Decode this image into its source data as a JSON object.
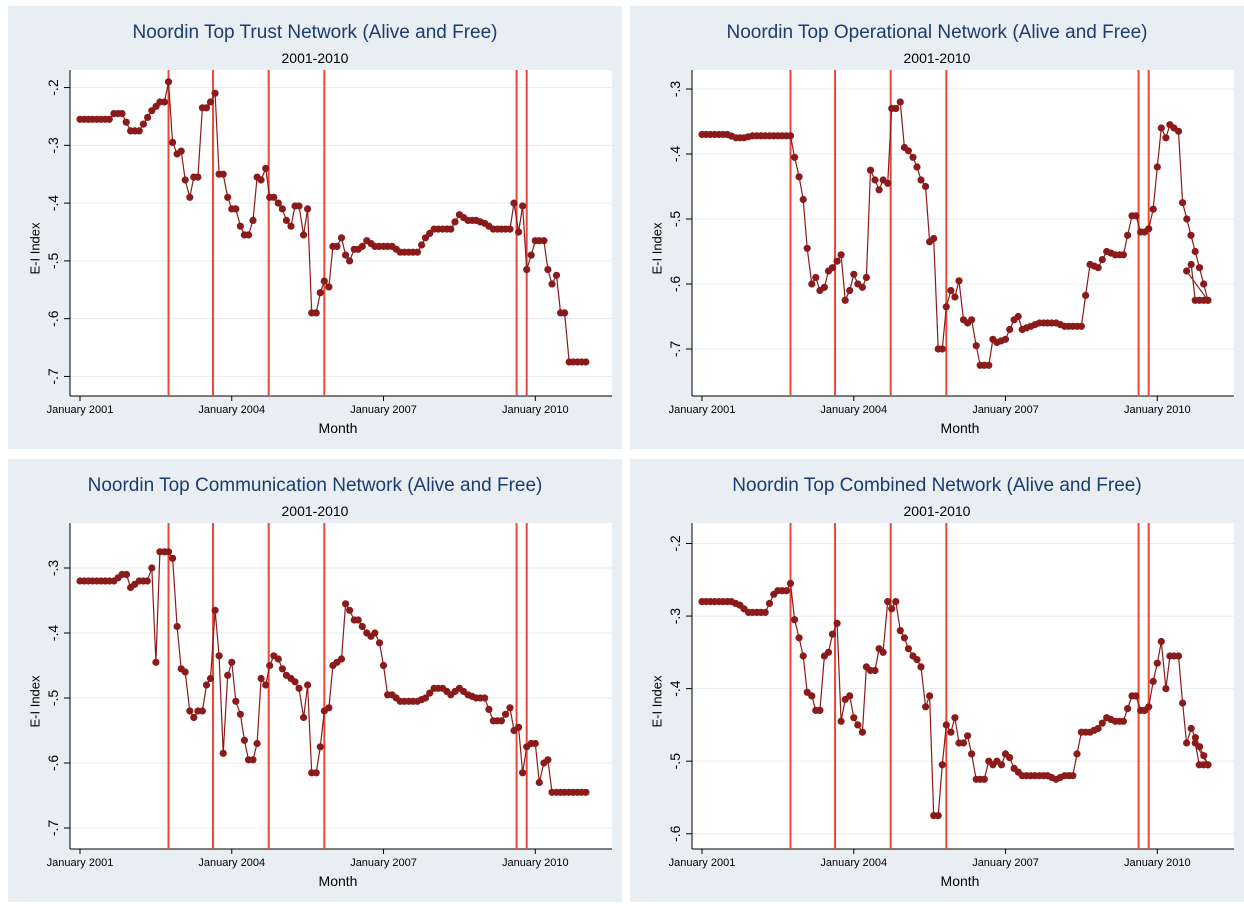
{
  "chart_data": [
    {
      "type": "line",
      "title": "Noordin Top Trust Network (Alive and Free)",
      "subtitle": "2001-2010",
      "xlabel": "Month",
      "ylabel": "E-I Index",
      "xlim": [
        2001.0,
        2011.2
      ],
      "ylim": [
        -0.72,
        -0.18
      ],
      "yticks": [
        -0.2,
        -0.3,
        -0.4,
        -0.5,
        -0.6,
        -0.7
      ],
      "ytick_labels": [
        "-.2",
        "-.3",
        "-.4",
        "-.5",
        "-.6",
        "-.7"
      ],
      "xticks": [
        2001.0,
        2004.0,
        2007.0,
        2010.0
      ],
      "xtick_labels": [
        "January 2001",
        "January 2004",
        "January 2007",
        "January 2010"
      ],
      "event_lines": [
        2002.75,
        2003.63,
        2004.73,
        2005.83,
        2009.63,
        2009.83
      ],
      "grid": true,
      "x": [
        2001.0,
        2001.58,
        2001.67,
        2001.83,
        2002.0,
        2002.17,
        2002.42,
        2002.58,
        2002.67,
        2002.75,
        2002.83,
        2002.92,
        2003.0,
        2003.08,
        2003.17,
        2003.25,
        2003.33,
        2003.42,
        2003.5,
        2003.58,
        2003.67,
        2003.75,
        2003.83,
        2003.92,
        2004.0,
        2004.08,
        2004.17,
        2004.25,
        2004.33,
        2004.42,
        2004.5,
        2004.58,
        2004.67,
        2004.75,
        2004.83,
        2004.92,
        2005.0,
        2005.08,
        2005.17,
        2005.25,
        2005.33,
        2005.42,
        2005.5,
        2005.58,
        2005.67,
        2005.75,
        2005.83,
        2005.92,
        2006.0,
        2006.08,
        2006.17,
        2006.25,
        2006.33,
        2006.42,
        2006.5,
        2006.58,
        2006.67,
        2006.83,
        2007.0,
        2007.17,
        2007.33,
        2007.5,
        2007.67,
        2007.83,
        2008.0,
        2008.17,
        2008.33,
        2008.5,
        2008.67,
        2008.83,
        2009.0,
        2009.17,
        2009.33,
        2009.5,
        2009.58,
        2009.67,
        2009.75,
        2009.83,
        2009.92,
        2010.0,
        2010.08,
        2010.17,
        2010.25,
        2010.33,
        2010.42,
        2010.5,
        2010.58,
        2010.67,
        2010.75,
        2011.0
      ],
      "y": [
        -0.255,
        -0.255,
        -0.245,
        -0.245,
        -0.275,
        -0.275,
        -0.24,
        -0.225,
        -0.225,
        -0.19,
        -0.295,
        -0.315,
        -0.31,
        -0.36,
        -0.39,
        -0.355,
        -0.355,
        -0.235,
        -0.235,
        -0.225,
        -0.21,
        -0.35,
        -0.35,
        -0.39,
        -0.41,
        -0.41,
        -0.44,
        -0.455,
        -0.455,
        -0.43,
        -0.355,
        -0.36,
        -0.34,
        -0.39,
        -0.39,
        -0.4,
        -0.41,
        -0.43,
        -0.44,
        -0.405,
        -0.405,
        -0.455,
        -0.41,
        -0.59,
        -0.59,
        -0.555,
        -0.535,
        -0.545,
        -0.475,
        -0.475,
        -0.46,
        -0.49,
        -0.5,
        -0.48,
        -0.48,
        -0.475,
        -0.465,
        -0.475,
        -0.475,
        -0.475,
        -0.485,
        -0.485,
        -0.485,
        -0.46,
        -0.445,
        -0.445,
        -0.445,
        -0.42,
        -0.43,
        -0.43,
        -0.435,
        -0.445,
        -0.445,
        -0.445,
        -0.4,
        -0.45,
        -0.405,
        -0.515,
        -0.49,
        -0.465,
        -0.465,
        -0.465,
        -0.515,
        -0.54,
        -0.525,
        -0.59,
        -0.59,
        -0.675,
        -0.675,
        -0.675
      ]
    },
    {
      "type": "line",
      "title": "Noordin Top Operational Network (Alive and Free)",
      "subtitle": "2001-2010",
      "xlabel": "Month",
      "ylabel": "E-I Index",
      "xlim": [
        2001.0,
        2011.2
      ],
      "ylim": [
        -0.76,
        -0.28
      ],
      "yticks": [
        -0.3,
        -0.4,
        -0.5,
        -0.6,
        -0.7
      ],
      "ytick_labels": [
        "-.3",
        "-.4",
        "-.5",
        "-.6",
        "-.7"
      ],
      "xticks": [
        2001.0,
        2004.0,
        2007.0,
        2010.0
      ],
      "xtick_labels": [
        "January 2001",
        "January 2004",
        "January 2007",
        "January 2010"
      ],
      "event_lines": [
        2002.75,
        2003.63,
        2004.73,
        2005.83,
        2009.63,
        2009.83
      ],
      "grid": true,
      "x": [
        2001.0,
        2001.5,
        2001.67,
        2001.83,
        2002.0,
        2002.5,
        2002.75,
        2002.83,
        2002.92,
        2003.0,
        2003.08,
        2003.17,
        2003.25,
        2003.33,
        2003.42,
        2003.5,
        2003.58,
        2003.67,
        2003.75,
        2003.83,
        2003.92,
        2004.0,
        2004.08,
        2004.17,
        2004.25,
        2004.33,
        2004.42,
        2004.5,
        2004.58,
        2004.67,
        2004.75,
        2004.83,
        2004.92,
        2005.0,
        2005.08,
        2005.17,
        2005.25,
        2005.33,
        2005.42,
        2005.5,
        2005.58,
        2005.67,
        2005.75,
        2005.83,
        2005.92,
        2006.0,
        2006.08,
        2006.17,
        2006.25,
        2006.33,
        2006.42,
        2006.5,
        2006.58,
        2006.67,
        2006.75,
        2006.83,
        2007.0,
        2007.17,
        2007.25,
        2007.33,
        2007.5,
        2007.67,
        2007.83,
        2008.0,
        2008.17,
        2008.25,
        2008.5,
        2008.67,
        2008.83,
        2009.0,
        2009.17,
        2009.33,
        2009.5,
        2009.58,
        2009.67,
        2009.75,
        2009.83,
        2009.92,
        2010.0,
        2010.08,
        2010.17,
        2010.25,
        2010.33,
        2010.42,
        2010.5,
        2011.0
      ],
      "y": [
        -0.37,
        -0.37,
        -0.375,
        -0.375,
        -0.372,
        -0.372,
        -0.372,
        -0.405,
        -0.435,
        -0.47,
        -0.545,
        -0.6,
        -0.59,
        -0.61,
        -0.605,
        -0.58,
        -0.575,
        -0.565,
        -0.555,
        -0.625,
        -0.61,
        -0.585,
        -0.6,
        -0.605,
        -0.59,
        -0.425,
        -0.44,
        -0.455,
        -0.44,
        -0.445,
        -0.33,
        -0.33,
        -0.32,
        -0.39,
        -0.395,
        -0.405,
        -0.42,
        -0.44,
        -0.45,
        -0.535,
        -0.53,
        -0.7,
        -0.7,
        -0.635,
        -0.61,
        -0.62,
        -0.595,
        -0.655,
        -0.66,
        -0.655,
        -0.695,
        -0.725,
        -0.725,
        -0.725,
        -0.685,
        -0.69,
        -0.685,
        -0.655,
        -0.65,
        -0.67,
        -0.665,
        -0.66,
        -0.66,
        -0.66,
        -0.665,
        -0.665,
        -0.665,
        -0.57,
        -0.575,
        -0.55,
        -0.555,
        -0.555,
        -0.495,
        -0.495,
        -0.52,
        -0.52,
        -0.515,
        -0.485,
        -0.42,
        -0.36,
        -0.375,
        -0.355,
        -0.36,
        -0.365,
        -0.475,
        -0.625
      ],
      "x_tail": [
        2010.58,
        2010.67,
        2010.75,
        2011.0
      ],
      "y_tail": [
        -0.58,
        -0.57,
        -0.625,
        -0.625
      ]
    },
    {
      "type": "line",
      "title": "Noordin Top Communication Network (Alive and Free)",
      "subtitle": "2001-2010",
      "xlabel": "Month",
      "ylabel": "E-I Index",
      "xlim": [
        2001.0,
        2011.2
      ],
      "ylim": [
        -0.72,
        -0.24
      ],
      "yticks": [
        -0.3,
        -0.4,
        -0.5,
        -0.6,
        -0.7
      ],
      "ytick_labels": [
        "-.3",
        "-.4",
        "-.5",
        "-.6",
        "-.7"
      ],
      "xticks": [
        2001.0,
        2004.0,
        2007.0,
        2010.0
      ],
      "xtick_labels": [
        "January 2001",
        "January 2004",
        "January 2007",
        "January 2010"
      ],
      "event_lines": [
        2002.75,
        2003.63,
        2004.73,
        2005.83,
        2009.63,
        2009.83
      ],
      "grid": true,
      "x": [
        2001.0,
        2001.67,
        2001.83,
        2001.92,
        2002.0,
        2002.17,
        2002.33,
        2002.42,
        2002.5,
        2002.58,
        2002.67,
        2002.75,
        2002.83,
        2002.92,
        2003.0,
        2003.08,
        2003.17,
        2003.25,
        2003.33,
        2003.42,
        2003.5,
        2003.58,
        2003.67,
        2003.75,
        2003.83,
        2003.92,
        2004.0,
        2004.08,
        2004.17,
        2004.25,
        2004.33,
        2004.42,
        2004.5,
        2004.58,
        2004.67,
        2004.75,
        2004.83,
        2004.92,
        2005.0,
        2005.08,
        2005.17,
        2005.25,
        2005.33,
        2005.42,
        2005.5,
        2005.58,
        2005.67,
        2005.75,
        2005.83,
        2005.92,
        2006.0,
        2006.08,
        2006.17,
        2006.25,
        2006.33,
        2006.42,
        2006.5,
        2006.58,
        2006.67,
        2006.75,
        2006.83,
        2006.92,
        2007.0,
        2007.08,
        2007.17,
        2007.25,
        2007.33,
        2007.5,
        2007.67,
        2007.83,
        2008.0,
        2008.17,
        2008.33,
        2008.5,
        2008.67,
        2008.83,
        2009.0,
        2009.17,
        2009.33,
        2009.5,
        2009.58,
        2009.67,
        2009.75,
        2009.83,
        2009.92,
        2010.0,
        2010.08,
        2010.17,
        2010.25,
        2010.33,
        2010.42,
        2010.5,
        2010.58,
        2011.0
      ],
      "y": [
        -0.32,
        -0.32,
        -0.31,
        -0.31,
        -0.33,
        -0.32,
        -0.32,
        -0.3,
        -0.445,
        -0.275,
        -0.275,
        -0.275,
        -0.285,
        -0.39,
        -0.455,
        -0.46,
        -0.52,
        -0.53,
        -0.52,
        -0.52,
        -0.48,
        -0.47,
        -0.365,
        -0.435,
        -0.585,
        -0.465,
        -0.445,
        -0.505,
        -0.525,
        -0.565,
        -0.595,
        -0.595,
        -0.57,
        -0.47,
        -0.48,
        -0.45,
        -0.435,
        -0.44,
        -0.455,
        -0.465,
        -0.47,
        -0.475,
        -0.485,
        -0.53,
        -0.48,
        -0.615,
        -0.615,
        -0.575,
        -0.52,
        -0.515,
        -0.45,
        -0.445,
        -0.44,
        -0.355,
        -0.365,
        -0.38,
        -0.38,
        -0.39,
        -0.4,
        -0.405,
        -0.4,
        -0.415,
        -0.45,
        -0.495,
        -0.495,
        -0.5,
        -0.505,
        -0.505,
        -0.505,
        -0.5,
        -0.485,
        -0.485,
        -0.495,
        -0.485,
        -0.495,
        -0.5,
        -0.5,
        -0.535,
        -0.535,
        -0.515,
        -0.55,
        -0.545,
        -0.615,
        -0.575,
        -0.57,
        -0.57,
        -0.63,
        -0.6,
        -0.595,
        -0.645,
        -0.645,
        -0.645,
        -0.645,
        -0.645
      ]
    },
    {
      "type": "line",
      "title": "Noordin Top Combined Network (Alive and Free)",
      "subtitle": "2001-2010",
      "xlabel": "Month",
      "ylabel": "E-I Index",
      "xlim": [
        2001.0,
        2011.2
      ],
      "ylim": [
        -0.61,
        -0.18
      ],
      "yticks": [
        -0.2,
        -0.3,
        -0.4,
        -0.5,
        -0.6
      ],
      "ytick_labels": [
        "-.2",
        "-.3",
        "-.4",
        "-.5",
        "-.6"
      ],
      "xticks": [
        2001.0,
        2004.0,
        2007.0,
        2010.0
      ],
      "xtick_labels": [
        "January 2001",
        "January 2004",
        "January 2007",
        "January 2010"
      ],
      "event_lines": [
        2002.75,
        2003.63,
        2004.73,
        2005.83,
        2009.63,
        2009.83
      ],
      "grid": true,
      "x": [
        2001.0,
        2001.58,
        2001.75,
        2001.83,
        2001.92,
        2002.0,
        2002.25,
        2002.42,
        2002.5,
        2002.67,
        2002.75,
        2002.83,
        2002.92,
        2003.0,
        2003.08,
        2003.17,
        2003.25,
        2003.33,
        2003.42,
        2003.5,
        2003.58,
        2003.67,
        2003.75,
        2003.83,
        2003.92,
        2004.0,
        2004.08,
        2004.17,
        2004.25,
        2004.33,
        2004.42,
        2004.5,
        2004.58,
        2004.67,
        2004.75,
        2004.83,
        2004.92,
        2005.0,
        2005.08,
        2005.17,
        2005.25,
        2005.33,
        2005.42,
        2005.5,
        2005.58,
        2005.67,
        2005.75,
        2005.83,
        2005.92,
        2006.0,
        2006.08,
        2006.17,
        2006.25,
        2006.33,
        2006.42,
        2006.5,
        2006.58,
        2006.67,
        2006.75,
        2006.83,
        2006.92,
        2007.0,
        2007.08,
        2007.17,
        2007.33,
        2007.5,
        2007.67,
        2007.83,
        2008.0,
        2008.17,
        2008.33,
        2008.5,
        2008.67,
        2008.83,
        2009.0,
        2009.17,
        2009.33,
        2009.5,
        2009.58,
        2009.67,
        2009.75,
        2009.83,
        2009.92,
        2010.0,
        2010.08,
        2010.17,
        2010.25,
        2010.33,
        2010.42,
        2010.5,
        2010.58,
        2010.67,
        2011.0
      ],
      "y": [
        -0.28,
        -0.28,
        -0.285,
        -0.29,
        -0.295,
        -0.295,
        -0.295,
        -0.27,
        -0.265,
        -0.265,
        -0.255,
        -0.305,
        -0.33,
        -0.355,
        -0.405,
        -0.41,
        -0.43,
        -0.43,
        -0.355,
        -0.35,
        -0.325,
        -0.31,
        -0.445,
        -0.415,
        -0.41,
        -0.44,
        -0.45,
        -0.46,
        -0.37,
        -0.375,
        -0.375,
        -0.345,
        -0.35,
        -0.28,
        -0.29,
        -0.28,
        -0.32,
        -0.33,
        -0.345,
        -0.355,
        -0.36,
        -0.37,
        -0.425,
        -0.41,
        -0.575,
        -0.575,
        -0.505,
        -0.45,
        -0.46,
        -0.44,
        -0.475,
        -0.475,
        -0.465,
        -0.49,
        -0.525,
        -0.525,
        -0.525,
        -0.5,
        -0.505,
        -0.5,
        -0.505,
        -0.49,
        -0.495,
        -0.51,
        -0.52,
        -0.52,
        -0.52,
        -0.52,
        -0.525,
        -0.52,
        -0.52,
        -0.46,
        -0.46,
        -0.455,
        -0.44,
        -0.445,
        -0.445,
        -0.41,
        -0.41,
        -0.43,
        -0.43,
        -0.425,
        -0.39,
        -0.365,
        -0.335,
        -0.4,
        -0.355,
        -0.355,
        -0.355,
        -0.42,
        -0.475,
        -0.455,
        -0.505
      ],
      "x_tail": [
        2010.75,
        2010.83,
        2011.0
      ],
      "y_tail": [
        -0.475,
        -0.505,
        -0.505
      ]
    }
  ],
  "colors": {
    "panel_bg": "#e8eef1",
    "plot_bg": "#ffffff",
    "title": "#1c3b72",
    "series": "#8b1a1a",
    "event_line": "#e8473a",
    "grid": "#e6ecef"
  }
}
